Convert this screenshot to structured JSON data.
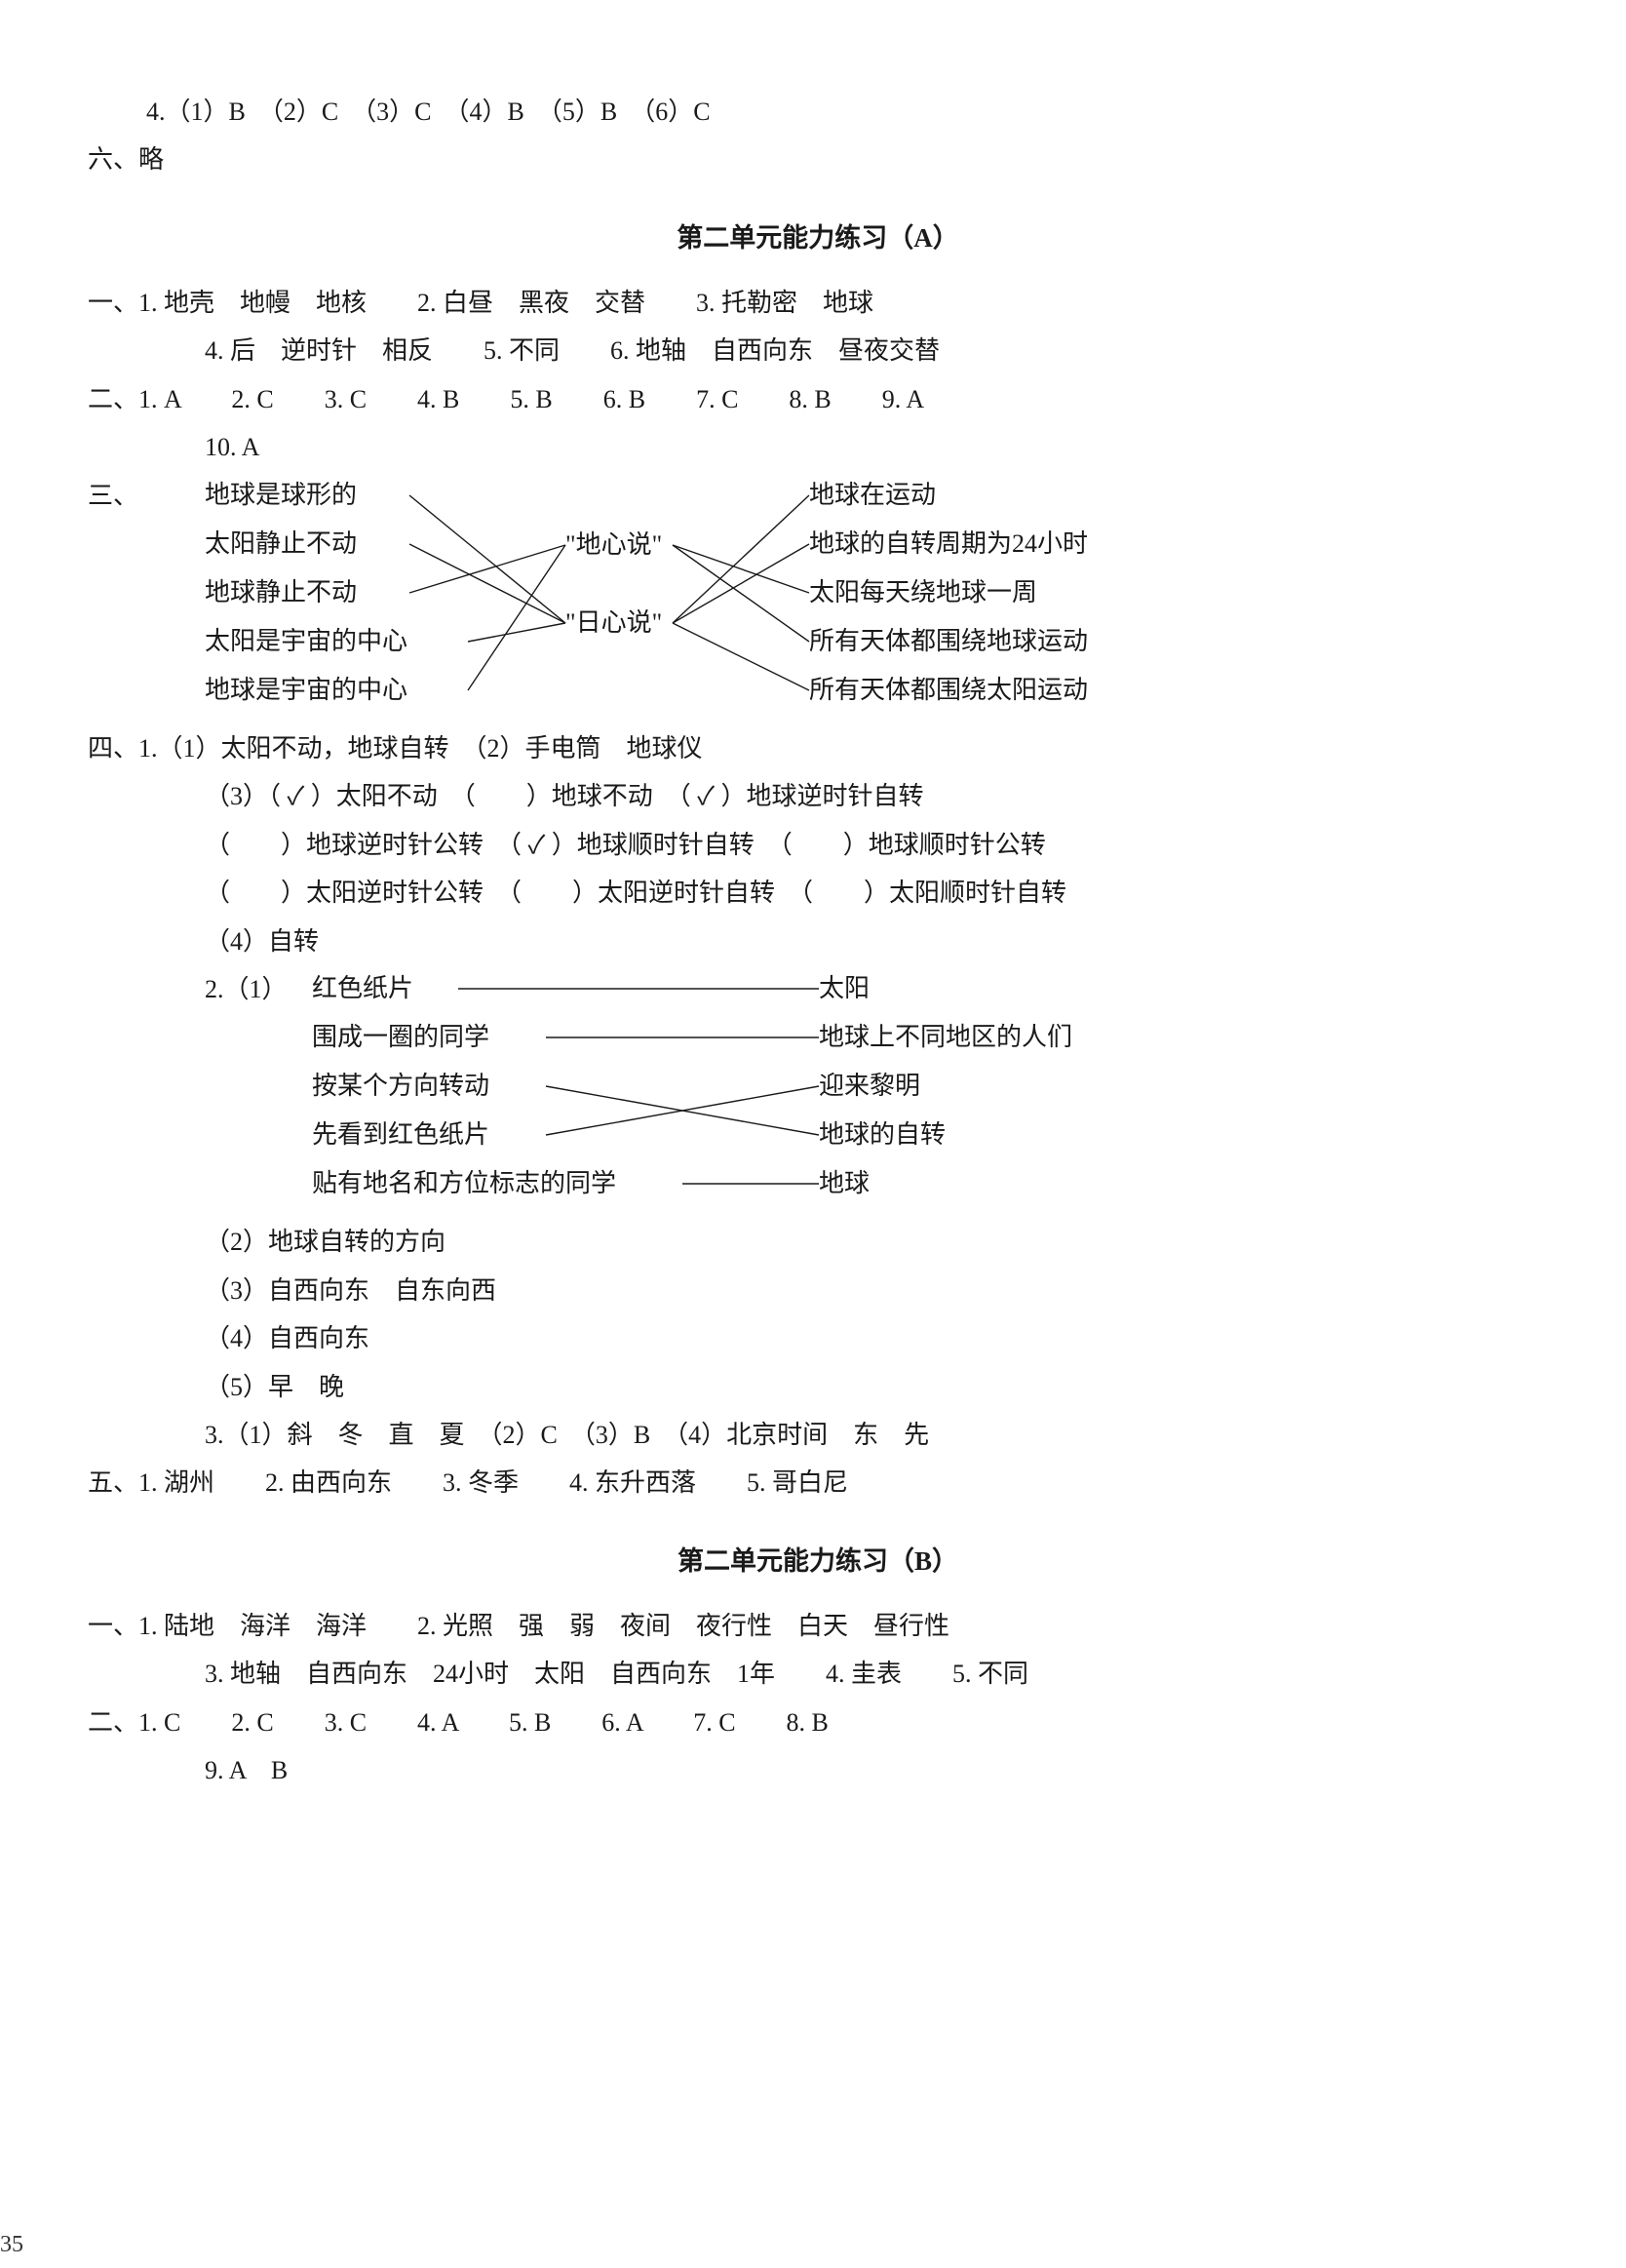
{
  "page_number": "35",
  "top": {
    "q4": "4.（1）B　（2）C　（3）C　（4）B　（5）B　（6）C",
    "six": "六、略"
  },
  "unitA": {
    "title": "第二单元能力练习（A）",
    "sec1": {
      "label": "一、",
      "l1": "1. 地壳　地幔　地核　　2. 白昼　黑夜　交替　　3. 托勒密　地球",
      "l2": "4. 后　逆时针　相反　　5. 不同　　6. 地轴　自西向东　昼夜交替"
    },
    "sec2": {
      "label": "二、",
      "l1": "1. A　　2. C　　3. C　　4. B　　5. B　　6. B　　7. C　　8. B　　9. A",
      "l2": "10. A"
    },
    "sec3": {
      "label": "三、",
      "left": [
        "地球是球形的",
        "太阳静止不动",
        "地球静止不动",
        "太阳是宇宙的中心",
        "地球是宇宙的中心"
      ],
      "mid": [
        "\"地心说\"",
        "\"日心说\""
      ],
      "right": [
        "地球在运动",
        "地球的自转周期为24小时",
        "太阳每天绕地球一周",
        "所有天体都围绕地球运动",
        "所有天体都围绕太阳运动"
      ],
      "edges_left_to_mid": [
        [
          0,
          1
        ],
        [
          1,
          1
        ],
        [
          2,
          0
        ],
        [
          3,
          1
        ],
        [
          4,
          0
        ]
      ],
      "edges_mid_to_right": [
        [
          0,
          2
        ],
        [
          0,
          3
        ],
        [
          1,
          0
        ],
        [
          1,
          1
        ],
        [
          1,
          4
        ]
      ],
      "line_color": "#1a1a1a",
      "line_width": 1.4
    },
    "sec4": {
      "label": "四、",
      "q1l1": "1.（1）太阳不动，地球自转　（2）手电筒　地球仪",
      "q1l2": "（3）（ ✓ ）太阳不动　（　　）地球不动　（ ✓ ）地球逆时针自转",
      "q1l3": "（　　）地球逆时针公转　（ ✓ ）地球顺时针自转　（　　）地球顺时针公转",
      "q1l4": "（　　）太阳逆时针公转　（　　）太阳逆时针自转　（　　）太阳顺时针自转",
      "q1l5": "（4）自转",
      "q2label": "2.（1）",
      "q2left": [
        "红色纸片",
        "围成一圈的同学",
        "按某个方向转动",
        "先看到红色纸片",
        "贴有地名和方位标志的同学"
      ],
      "q2right": [
        "太阳",
        "地球上不同地区的人们",
        "迎来黎明",
        "地球的自转",
        "地球"
      ],
      "q2edges": [
        [
          0,
          0
        ],
        [
          1,
          1
        ],
        [
          2,
          3
        ],
        [
          3,
          2
        ],
        [
          4,
          4
        ]
      ],
      "q2line_color": "#1a1a1a",
      "q2l2": "（2）地球自转的方向",
      "q2l3": "（3）自西向东　自东向西",
      "q2l4": "（4）自西向东",
      "q2l5": "（5）早　晚",
      "q3": "3.（1）斜　冬　直　夏　（2）C　（3）B　（4）北京时间　东　先"
    },
    "sec5": {
      "label": "五、",
      "l1": "1. 湖州　　2. 由西向东　　3. 冬季　　4. 东升西落　　5. 哥白尼"
    }
  },
  "unitB": {
    "title": "第二单元能力练习（B）",
    "sec1": {
      "label": "一、",
      "l1": "1. 陆地　海洋　海洋　　2. 光照　强　弱　夜间　夜行性　白天　昼行性",
      "l2": "3. 地轴　自西向东　24小时　太阳　自西向东　1年　　4. 圭表　　5. 不同"
    },
    "sec2": {
      "label": "二、",
      "l1": "1. C　　2. C　　3. C　　4. A　　5. B　　6. A　　7. C　　8. B",
      "l2": "9. A　B"
    }
  }
}
